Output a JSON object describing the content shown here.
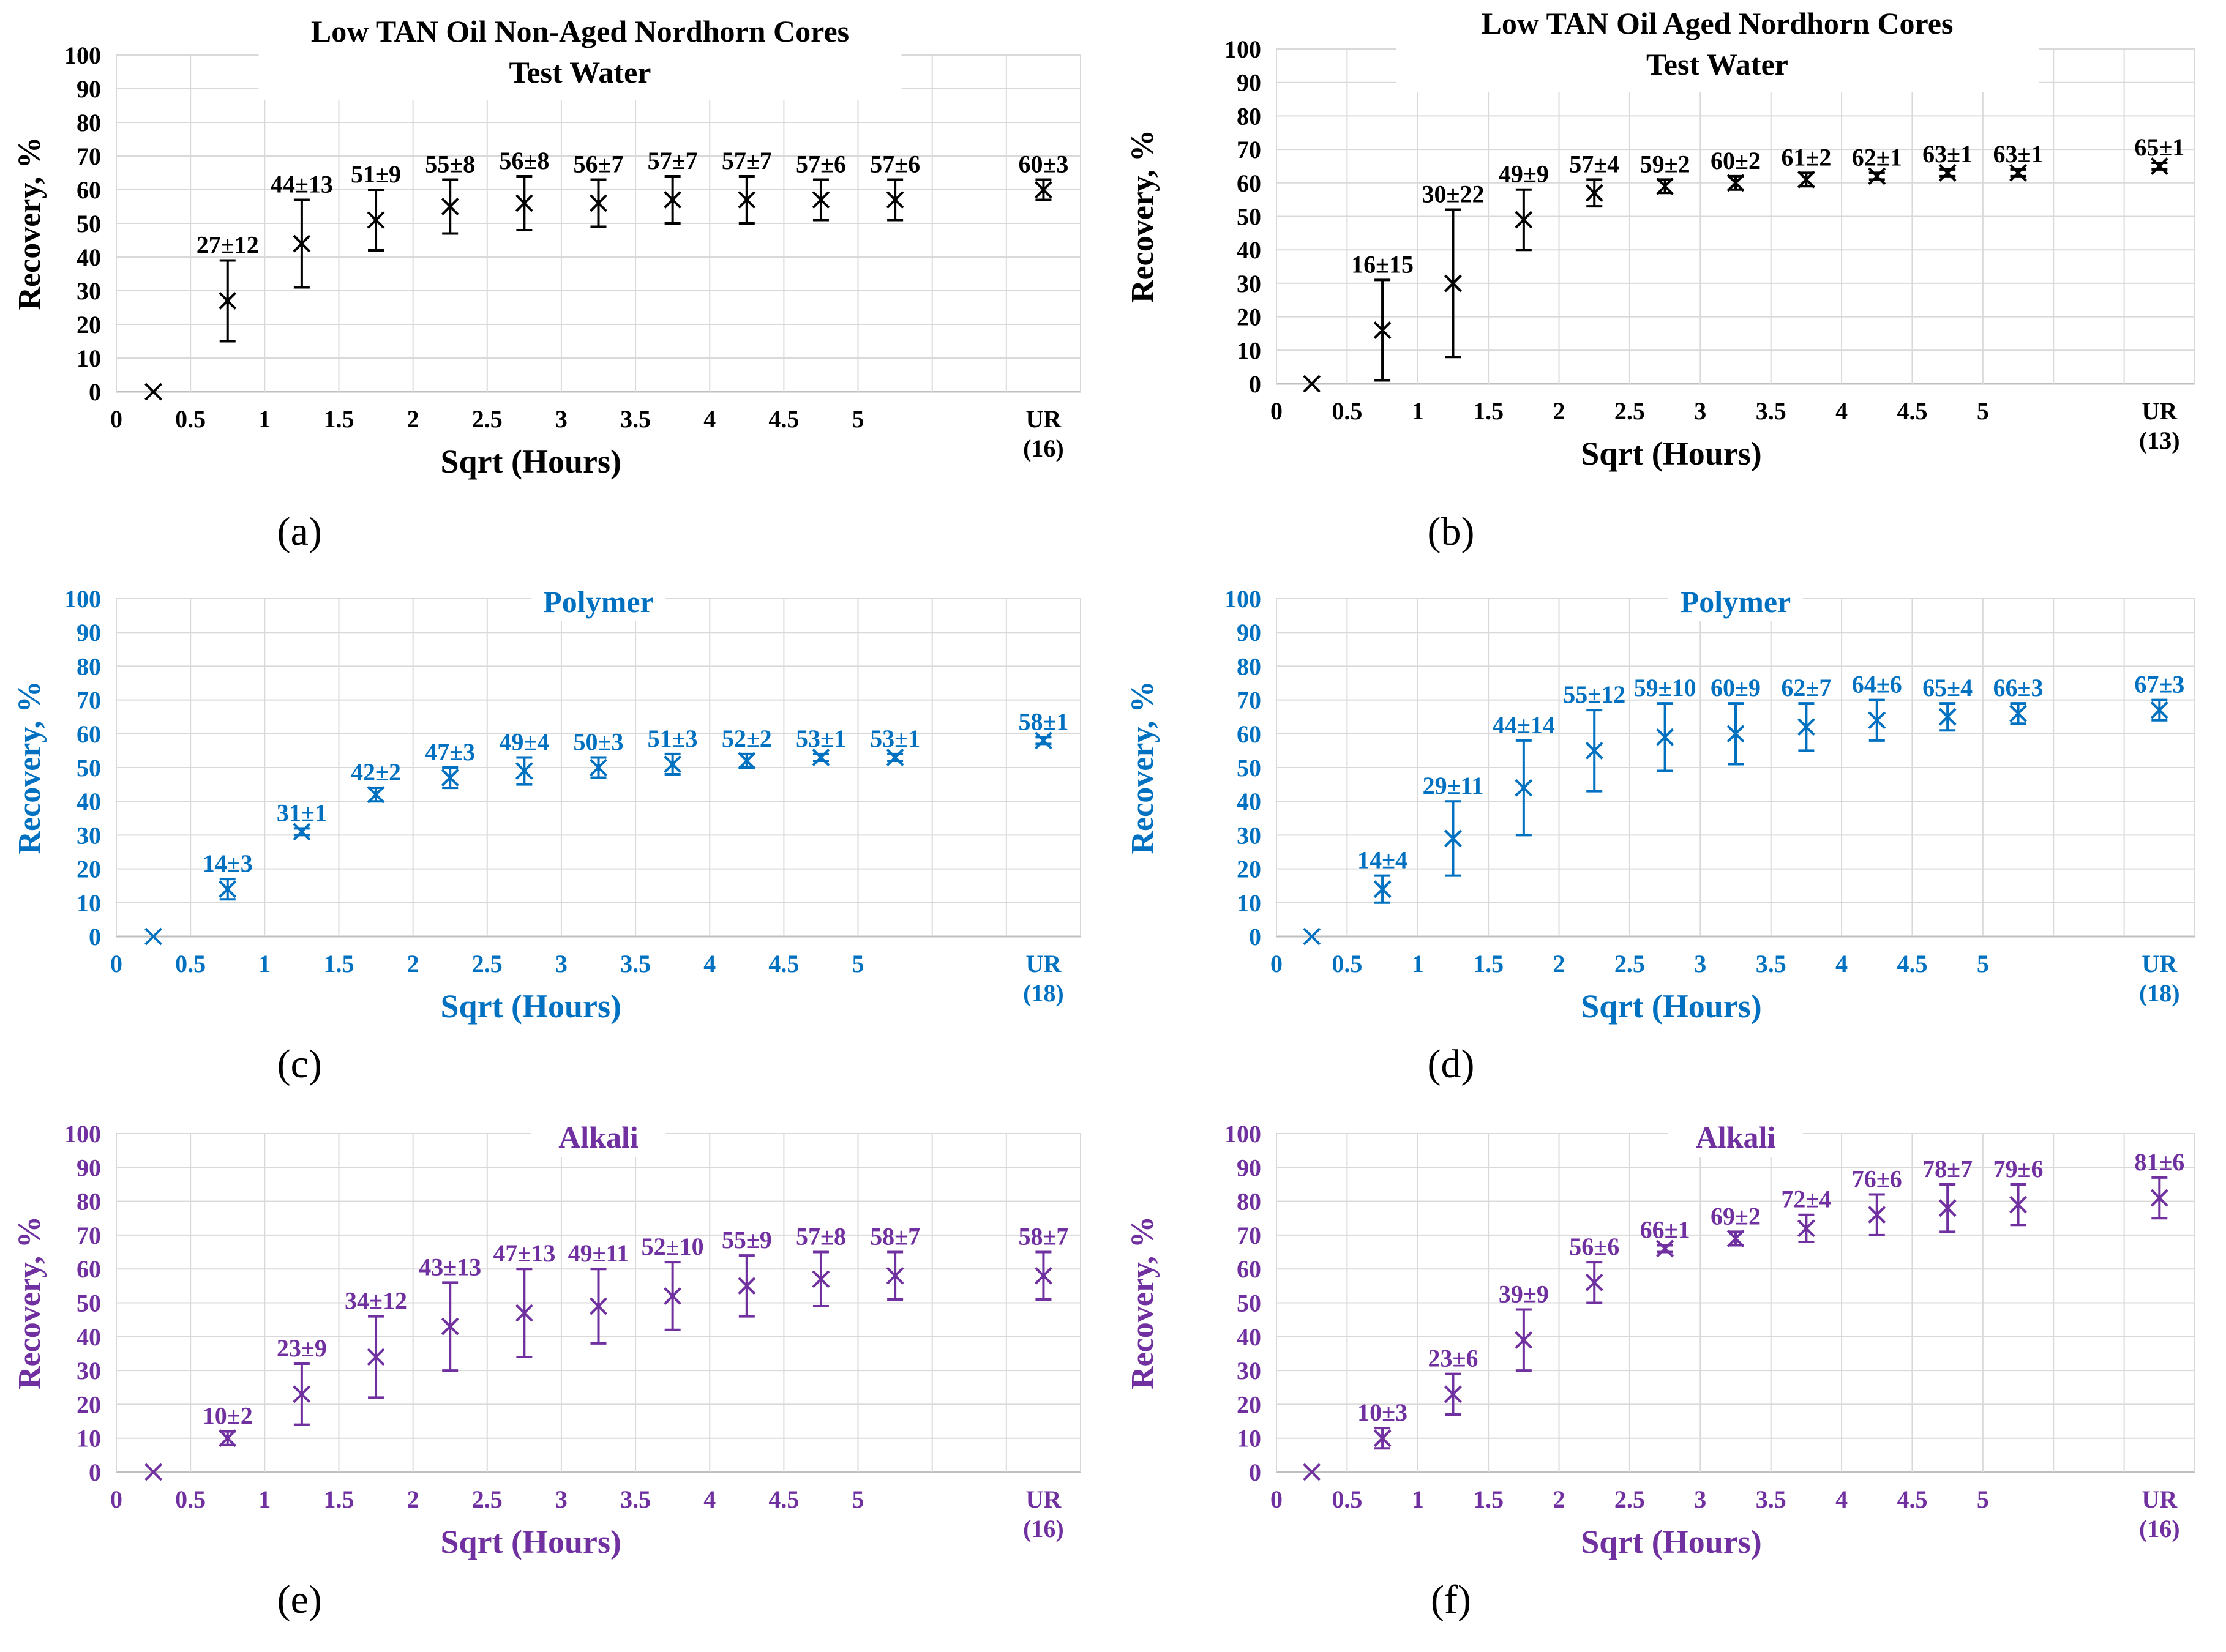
{
  "chart_data": [
    {
      "id": "a",
      "type": "scatter",
      "panel_label": "(a)",
      "title_lines": [
        "Low TAN Oil Non-Aged Nordhorn Cores",
        "Test Water"
      ],
      "color": "#000000",
      "xlabel": "Sqrt (Hours)",
      "ylabel": "Recovery, %",
      "ylim": [
        0,
        100
      ],
      "yticks": [
        "0",
        "10",
        "20",
        "30",
        "40",
        "50",
        "60",
        "70",
        "80",
        "90",
        "100"
      ],
      "categories": [
        "0",
        "0.5",
        "1",
        "1.5",
        "2",
        "2.5",
        "3",
        "3.5",
        "4",
        "4.5",
        "5"
      ],
      "ur_label": [
        "UR",
        "(16)"
      ],
      "values": [
        0,
        27,
        44,
        51,
        55,
        56,
        56,
        57,
        57,
        57,
        57
      ],
      "errors": [
        0,
        12,
        13,
        9,
        8,
        8,
        7,
        7,
        7,
        6,
        6
      ],
      "point_labels": [
        "",
        "27±12",
        "44±13",
        "51±9",
        "55±8",
        "56±8",
        "56±7",
        "57±7",
        "57±7",
        "57±6",
        "57±6"
      ],
      "ur_value": 60,
      "ur_error": 3,
      "ur_point_label": "60±3"
    },
    {
      "id": "b",
      "type": "scatter",
      "panel_label": "(b)",
      "title_lines": [
        "Low TAN Oil Aged Nordhorn Cores",
        "Test Water"
      ],
      "color": "#000000",
      "xlabel": "Sqrt (Hours)",
      "ylabel": "Recovery, %",
      "ylim": [
        0,
        100
      ],
      "yticks": [
        "0",
        "10",
        "20",
        "30",
        "40",
        "50",
        "60",
        "70",
        "80",
        "90",
        "100"
      ],
      "categories": [
        "0",
        "0.5",
        "1",
        "1.5",
        "2",
        "2.5",
        "3",
        "3.5",
        "4",
        "4.5",
        "5"
      ],
      "ur_label": [
        "UR",
        "(13)"
      ],
      "values": [
        0,
        16,
        30,
        49,
        57,
        59,
        60,
        61,
        62,
        63,
        63
      ],
      "errors": [
        0,
        15,
        22,
        9,
        4,
        2,
        2,
        2,
        1,
        1,
        1
      ],
      "point_labels": [
        "",
        "16±15",
        "30±22",
        "49±9",
        "57±4",
        "59±2",
        "60±2",
        "61±2",
        "62±1",
        "63±1",
        "63±1"
      ],
      "ur_value": 65,
      "ur_error": 1,
      "ur_point_label": "65±1"
    },
    {
      "id": "c",
      "type": "scatter",
      "panel_label": "(c)",
      "title_lines": [
        "Polymer"
      ],
      "color": "#0070C0",
      "xlabel": "Sqrt (Hours)",
      "ylabel": "Recovery, %",
      "ylim": [
        0,
        100
      ],
      "yticks": [
        "0",
        "10",
        "20",
        "30",
        "40",
        "50",
        "60",
        "70",
        "80",
        "90",
        "100"
      ],
      "categories": [
        "0",
        "0.5",
        "1",
        "1.5",
        "2",
        "2.5",
        "3",
        "3.5",
        "4",
        "4.5",
        "5"
      ],
      "ur_label": [
        "UR",
        "(18)"
      ],
      "values": [
        0,
        14,
        31,
        42,
        47,
        49,
        50,
        51,
        52,
        53,
        53
      ],
      "errors": [
        0,
        3,
        1,
        2,
        3,
        4,
        3,
        3,
        2,
        1,
        1
      ],
      "point_labels": [
        "",
        "14±3",
        "31±1",
        "42±2",
        "47±3",
        "49±4",
        "50±3",
        "51±3",
        "52±2",
        "53±1",
        "53±1"
      ],
      "ur_value": 58,
      "ur_error": 1,
      "ur_point_label": "58±1"
    },
    {
      "id": "d",
      "type": "scatter",
      "panel_label": "(d)",
      "title_lines": [
        "Polymer"
      ],
      "color": "#0070C0",
      "xlabel": "Sqrt (Hours)",
      "ylabel": "Recovery, %",
      "ylim": [
        0,
        100
      ],
      "yticks": [
        "0",
        "10",
        "20",
        "30",
        "40",
        "50",
        "60",
        "70",
        "80",
        "90",
        "100"
      ],
      "categories": [
        "0",
        "0.5",
        "1",
        "1.5",
        "2",
        "2.5",
        "3",
        "3.5",
        "4",
        "4.5",
        "5"
      ],
      "ur_label": [
        "UR",
        "(18)"
      ],
      "values": [
        0,
        14,
        29,
        44,
        55,
        59,
        60,
        62,
        64,
        65,
        66
      ],
      "errors": [
        0,
        4,
        11,
        14,
        12,
        10,
        9,
        7,
        6,
        4,
        3
      ],
      "point_labels": [
        "",
        "14±4",
        "29±11",
        "44±14",
        "55±12",
        "59±10",
        "60±9",
        "62±7",
        "64±6",
        "65±4",
        "66±3"
      ],
      "ur_value": 67,
      "ur_error": 3,
      "ur_point_label": "67±3"
    },
    {
      "id": "e",
      "type": "scatter",
      "panel_label": "(e)",
      "title_lines": [
        "Alkali"
      ],
      "color": "#7030A0",
      "xlabel": "Sqrt (Hours)",
      "ylabel": "Recovery, %",
      "ylim": [
        0,
        100
      ],
      "yticks": [
        "0",
        "10",
        "20",
        "30",
        "40",
        "50",
        "60",
        "70",
        "80",
        "90",
        "100"
      ],
      "categories": [
        "0",
        "0.5",
        "1",
        "1.5",
        "2",
        "2.5",
        "3",
        "3.5",
        "4",
        "4.5",
        "5"
      ],
      "ur_label": [
        "UR",
        "(16)"
      ],
      "values": [
        0,
        10,
        23,
        34,
        43,
        47,
        49,
        52,
        55,
        57,
        58
      ],
      "errors": [
        0,
        2,
        9,
        12,
        13,
        13,
        11,
        10,
        9,
        8,
        7
      ],
      "point_labels": [
        "",
        "10±2",
        "23±9",
        "34±12",
        "43±13",
        "47±13",
        "49±11",
        "52±10",
        "55±9",
        "57±8",
        "58±7"
      ],
      "ur_value": 58,
      "ur_error": 7,
      "ur_point_label": "58±7"
    },
    {
      "id": "f",
      "type": "scatter",
      "panel_label": "(f)",
      "title_lines": [
        "Alkali"
      ],
      "color": "#7030A0",
      "xlabel": "Sqrt (Hours)",
      "ylabel": "Recovery, %",
      "ylim": [
        0,
        100
      ],
      "yticks": [
        "0",
        "10",
        "20",
        "30",
        "40",
        "50",
        "60",
        "70",
        "80",
        "90",
        "100"
      ],
      "categories": [
        "0",
        "0.5",
        "1",
        "1.5",
        "2",
        "2.5",
        "3",
        "3.5",
        "4",
        "4.5",
        "5"
      ],
      "ur_label": [
        "UR",
        "(16)"
      ],
      "values": [
        0,
        10,
        23,
        39,
        56,
        66,
        69,
        72,
        76,
        78,
        79
      ],
      "errors": [
        0,
        3,
        6,
        9,
        6,
        1,
        2,
        4,
        6,
        7,
        6
      ],
      "point_labels": [
        "",
        "10±3",
        "23±6",
        "39±9",
        "56±6",
        "66±1",
        "69±2",
        "72±4",
        "76±6",
        "78±7",
        "79±6"
      ],
      "ur_value": 81,
      "ur_error": 6,
      "ur_point_label": "81±6"
    }
  ]
}
